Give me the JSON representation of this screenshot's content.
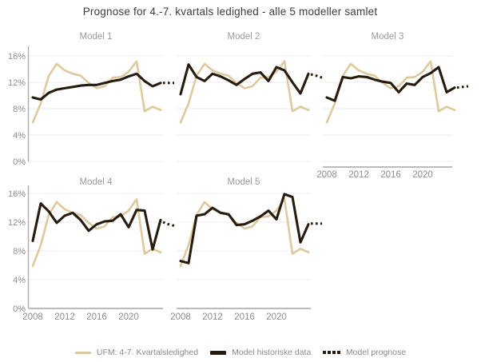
{
  "title": "Prognose for 4.-7. kvartals ledighed - alle 5 modeller samlet",
  "legend": {
    "items": [
      {
        "id": "ufm",
        "label": "UFM: 4-7. Kvartalsledighed",
        "color": "#ddc99f",
        "style": "solid"
      },
      {
        "id": "historical",
        "label": "Model historiske data",
        "color": "#261b0e",
        "style": "solid"
      },
      {
        "id": "prognose",
        "label": "Model prognose",
        "color": "#261b0e",
        "style": "dotted"
      }
    ]
  },
  "chart_data": {
    "type": "line",
    "title": "Prognose for 4.-7. kvartals ledighed - alle 5 modeller samlet",
    "xlabel": "",
    "ylabel": "",
    "ylim": [
      0,
      16
    ],
    "y_tick_values": [
      0,
      4,
      8,
      12,
      16
    ],
    "y_tick_labels": [
      "0%",
      "4%",
      "8%",
      "12%",
      "16%"
    ],
    "x_tick_values": [
      2008,
      2012,
      2016,
      2020
    ],
    "x_tick_labels": [
      "2008",
      "2012",
      "2016",
      "2020"
    ],
    "grid": "horizontal",
    "legend_position": "bottom",
    "years": [
      2008,
      2009,
      2010,
      2011,
      2012,
      2013,
      2014,
      2015,
      2016,
      2017,
      2018,
      2019,
      2020,
      2021,
      2022,
      2023,
      2024
    ],
    "ufm_series": {
      "name": "UFM: 4-7. Kvartalsledighed",
      "color": "#ddc99f",
      "values": [
        5.9,
        8.8,
        13.0,
        14.8,
        13.8,
        13.3,
        13.0,
        11.9,
        11.1,
        11.4,
        12.7,
        12.8,
        13.6,
        15.2,
        7.6,
        8.3,
        7.8
      ]
    },
    "historical_color": "#261b0e",
    "facets": [
      {
        "title": "Model 1",
        "historical": [
          9.7,
          9.4,
          10.4,
          10.9,
          11.1,
          11.3,
          11.5,
          11.6,
          11.6,
          11.9,
          12.2,
          12.4,
          12.9,
          13.3,
          12.2,
          11.4,
          11.9
        ],
        "prognose_x": [
          2024.3,
          2025.0,
          2025.7
        ],
        "prognose": [
          11.9,
          11.9,
          11.9
        ]
      },
      {
        "title": "Model 2",
        "historical": [
          10.2,
          14.7,
          12.8,
          12.2,
          13.3,
          12.9,
          12.3,
          11.6,
          12.5,
          13.3,
          13.5,
          12.2,
          14.3,
          13.8,
          12.0,
          10.3,
          13.3
        ],
        "prognose_x": [
          2024.3,
          2025.0,
          2025.7
        ],
        "prognose": [
          13.2,
          13.0,
          12.7
        ]
      },
      {
        "title": "Model 3",
        "historical": [
          9.7,
          9.2,
          12.8,
          12.6,
          12.9,
          12.8,
          12.4,
          12.1,
          11.9,
          10.5,
          11.8,
          11.6,
          12.8,
          13.4,
          14.3,
          10.5,
          11.2
        ],
        "prognose_x": [
          2024.3,
          2025.0,
          2025.7
        ],
        "prognose": [
          11.2,
          11.3,
          11.4
        ]
      },
      {
        "title": "Model 4",
        "historical": [
          9.4,
          14.6,
          13.5,
          11.9,
          12.9,
          13.3,
          12.3,
          10.8,
          11.7,
          12.1,
          12.2,
          13.1,
          11.3,
          13.7,
          13.6,
          8.2,
          12.3
        ],
        "prognose_x": [
          2024.3,
          2025.0,
          2025.7
        ],
        "prognose": [
          12.0,
          11.7,
          11.5
        ]
      },
      {
        "title": "Model 5",
        "historical": [
          6.6,
          6.3,
          12.9,
          13.1,
          14.0,
          13.3,
          13.1,
          11.6,
          11.7,
          12.2,
          12.8,
          13.6,
          12.4,
          15.9,
          15.5,
          9.2,
          11.7
        ],
        "prognose_x": [
          2024.3,
          2025.0,
          2025.7
        ],
        "prognose": [
          11.8,
          11.8,
          11.8
        ]
      }
    ]
  }
}
